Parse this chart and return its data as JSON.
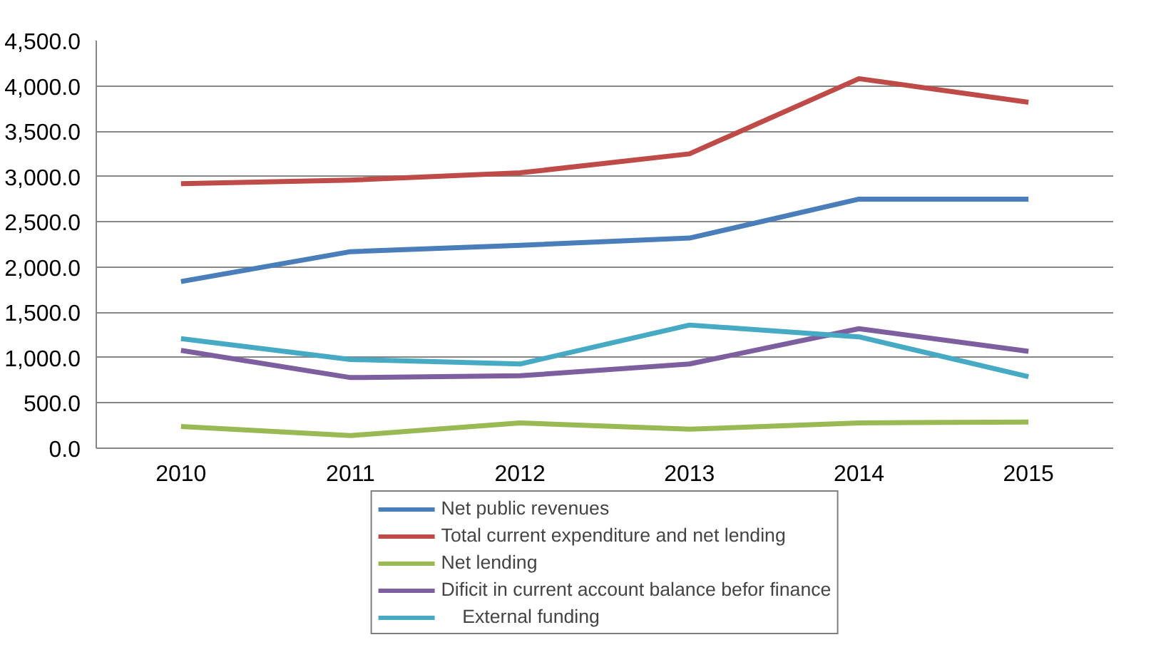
{
  "chart_data": {
    "type": "line",
    "categories": [
      "2010",
      "2011",
      "2012",
      "2013",
      "2014",
      "2015"
    ],
    "series": [
      {
        "name": "Net public revenues",
        "color": "#4a7ebb",
        "values": [
          1840,
          2170,
          2240,
          2320,
          2750,
          2750
        ]
      },
      {
        "name": "Total current expenditure and net lending",
        "color": "#be4b48",
        "values": [
          2920,
          2960,
          3040,
          3250,
          4080,
          3820
        ]
      },
      {
        "name": "Net lending",
        "color": "#98b954",
        "values": [
          240,
          140,
          280,
          210,
          280,
          290
        ]
      },
      {
        "name": "Dificit in current account balance befor finance",
        "color": "#7d5fa0",
        "values": [
          1080,
          780,
          800,
          930,
          1320,
          1070
        ]
      },
      {
        "name": "    External funding",
        "color": "#46aac5",
        "values": [
          1210,
          980,
          930,
          1360,
          1230,
          790
        ]
      }
    ],
    "ylim": [
      0,
      4500
    ],
    "yticks": [
      {
        "value": 0,
        "label": "0.0"
      },
      {
        "value": 500,
        "label": "500.0"
      },
      {
        "value": 1000,
        "label": "1,000.0"
      },
      {
        "value": 1500,
        "label": "1,500.0"
      },
      {
        "value": 2000,
        "label": "2,000.0"
      },
      {
        "value": 2500,
        "label": "2,500.0"
      },
      {
        "value": 3000,
        "label": "3,000.0"
      },
      {
        "value": 3500,
        "label": "3,500.0"
      },
      {
        "value": 4000,
        "label": "4,000.0"
      },
      {
        "value": 4500,
        "label": "4,500.0"
      }
    ],
    "grid": "y",
    "legend": "bottom",
    "marker": "none",
    "line_style": "solid"
  }
}
